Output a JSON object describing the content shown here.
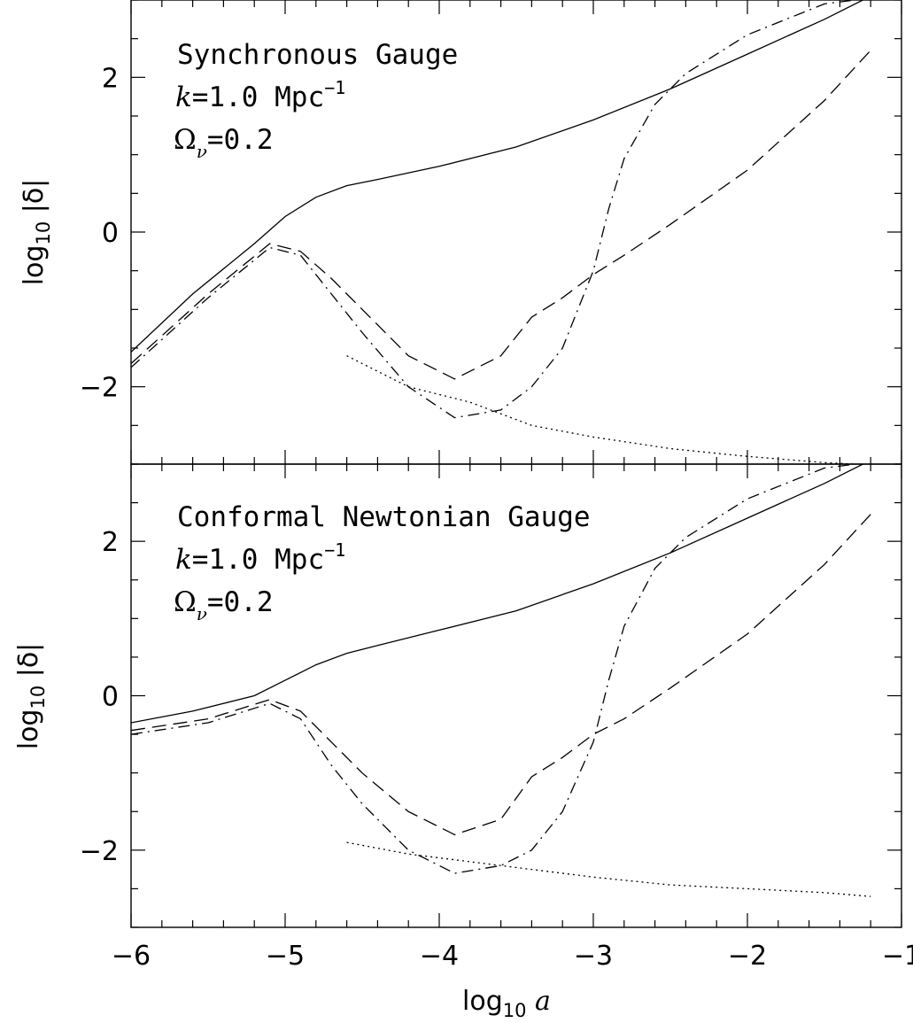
{
  "chart_data": [
    {
      "type": "line",
      "panel": "top",
      "annotation": {
        "gauge": "Synchronous Gauge",
        "k_symbol": "k",
        "k_value": "=1.0 Mpc",
        "k_exp": "−1",
        "omega_symbol": "Ω",
        "omega_sub": "ν",
        "omega_value": "=0.2"
      },
      "ylabel": {
        "prefix": "log",
        "sub": "10",
        "suffix": " |δ|"
      },
      "xlim": [
        -6,
        -1
      ],
      "ylim": [
        -3,
        3
      ],
      "yticks": [
        {
          "value": -2,
          "label": "−2"
        },
        {
          "value": 0,
          "label": "0"
        },
        {
          "value": 2,
          "label": "2"
        }
      ],
      "series": [
        {
          "style": "solid",
          "x": [
            -6,
            -5.6,
            -5.2,
            -5.0,
            -4.8,
            -4.6,
            -4.4,
            -4.0,
            -3.5,
            -3.0,
            -2.5,
            -2.0,
            -1.5,
            -1.2
          ],
          "y": [
            -1.55,
            -0.8,
            -0.15,
            0.2,
            0.45,
            0.6,
            0.68,
            0.85,
            1.1,
            1.45,
            1.85,
            2.3,
            2.75,
            3.05
          ]
        },
        {
          "style": "dashed",
          "x": [
            -6,
            -5.5,
            -5.1,
            -4.9,
            -4.7,
            -4.5,
            -4.2,
            -3.9,
            -3.6,
            -3.4,
            -3.2,
            -3.0,
            -2.8,
            -2.5,
            -2.0,
            -1.5,
            -1.2
          ],
          "y": [
            -1.7,
            -0.8,
            -0.15,
            -0.25,
            -0.6,
            -1.0,
            -1.6,
            -1.9,
            -1.6,
            -1.1,
            -0.85,
            -0.55,
            -0.3,
            0.1,
            0.8,
            1.7,
            2.35
          ]
        },
        {
          "style": "dash-dot",
          "x": [
            -6,
            -5.5,
            -5.1,
            -4.9,
            -4.7,
            -4.5,
            -4.2,
            -3.9,
            -3.6,
            -3.4,
            -3.2,
            -3.0,
            -2.9,
            -2.8,
            -2.6,
            -2.4,
            -2.0,
            -1.5,
            -1.3
          ],
          "y": [
            -1.75,
            -0.85,
            -0.2,
            -0.3,
            -0.8,
            -1.3,
            -2.0,
            -2.4,
            -2.3,
            -2.0,
            -1.5,
            -0.5,
            0.3,
            0.95,
            1.65,
            2.05,
            2.55,
            2.95,
            3.0
          ]
        },
        {
          "style": "dotted",
          "x": [
            -4.6,
            -4.2,
            -3.8,
            -3.4,
            -3.0,
            -2.5,
            -2.0,
            -1.5,
            -1.3
          ],
          "y": [
            -1.6,
            -2.0,
            -2.2,
            -2.5,
            -2.65,
            -2.8,
            -2.9,
            -2.98,
            -3.0
          ]
        }
      ]
    },
    {
      "type": "line",
      "panel": "bottom",
      "annotation": {
        "gauge": "Conformal Newtonian Gauge",
        "k_symbol": "k",
        "k_value": "=1.0 Mpc",
        "k_exp": "−1",
        "omega_symbol": "Ω",
        "omega_sub": "ν",
        "omega_value": "=0.2"
      },
      "ylabel": {
        "prefix": "log",
        "sub": "10",
        "suffix": " |δ|"
      },
      "xlabel": {
        "prefix": "log",
        "sub": "10",
        "suffix": " a"
      },
      "xlim": [
        -6,
        -1
      ],
      "ylim": [
        -3,
        3
      ],
      "xticks": [
        {
          "value": -6,
          "label": "−6"
        },
        {
          "value": -5,
          "label": "−5"
        },
        {
          "value": -4,
          "label": "−4"
        },
        {
          "value": -3,
          "label": "−3"
        },
        {
          "value": -2,
          "label": "−2"
        },
        {
          "value": -1,
          "label": "−1"
        }
      ],
      "yticks": [
        {
          "value": -2,
          "label": "−2"
        },
        {
          "value": 0,
          "label": "0"
        },
        {
          "value": 2,
          "label": "2"
        }
      ],
      "series": [
        {
          "style": "solid",
          "x": [
            -6,
            -5.6,
            -5.2,
            -5.0,
            -4.8,
            -4.6,
            -4.4,
            -4.0,
            -3.5,
            -3.0,
            -2.5,
            -2.0,
            -1.5,
            -1.2
          ],
          "y": [
            -0.35,
            -0.2,
            0.0,
            0.2,
            0.4,
            0.55,
            0.65,
            0.85,
            1.1,
            1.45,
            1.85,
            2.3,
            2.75,
            3.05
          ]
        },
        {
          "style": "dashed",
          "x": [
            -6,
            -5.5,
            -5.1,
            -4.9,
            -4.7,
            -4.5,
            -4.2,
            -3.9,
            -3.6,
            -3.4,
            -3.2,
            -3.0,
            -2.8,
            -2.5,
            -2.0,
            -1.5,
            -1.2
          ],
          "y": [
            -0.45,
            -0.3,
            -0.05,
            -0.2,
            -0.6,
            -1.0,
            -1.5,
            -1.8,
            -1.6,
            -1.05,
            -0.8,
            -0.5,
            -0.3,
            0.1,
            0.8,
            1.7,
            2.35
          ]
        },
        {
          "style": "dash-dot",
          "x": [
            -6,
            -5.5,
            -5.1,
            -4.9,
            -4.7,
            -4.5,
            -4.2,
            -3.9,
            -3.6,
            -3.4,
            -3.2,
            -3.0,
            -2.9,
            -2.8,
            -2.6,
            -2.4,
            -2.0,
            -1.5,
            -1.3
          ],
          "y": [
            -0.5,
            -0.35,
            -0.1,
            -0.3,
            -0.9,
            -1.4,
            -2.0,
            -2.3,
            -2.2,
            -2.0,
            -1.5,
            -0.6,
            0.2,
            0.9,
            1.65,
            2.05,
            2.55,
            2.95,
            3.0
          ]
        },
        {
          "style": "dotted",
          "x": [
            -4.6,
            -4.2,
            -3.8,
            -3.4,
            -3.0,
            -2.5,
            -2.0,
            -1.5,
            -1.2
          ],
          "y": [
            -1.9,
            -2.05,
            -2.15,
            -2.25,
            -2.35,
            -2.45,
            -2.5,
            -2.55,
            -2.6
          ]
        }
      ]
    }
  ]
}
